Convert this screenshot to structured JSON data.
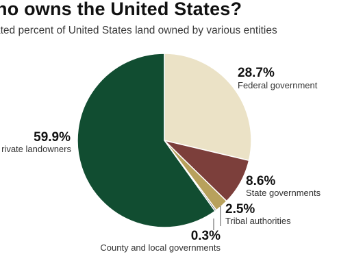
{
  "header": {
    "title": "ho owns the United States?",
    "subtitle": "ated percent of United States land owned by various entities"
  },
  "chart_data": {
    "type": "pie",
    "title": "ho owns the United States?",
    "subtitle": "ated percent of United States land owned by various entities",
    "start_angle_deg": 0,
    "direction": "clockwise",
    "slices": [
      {
        "label": "Federal government",
        "value": 28.7,
        "value_label": "28.7%",
        "color": "#ebe2c6"
      },
      {
        "label": "State governments",
        "value": 8.6,
        "value_label": "8.6%",
        "color": "#7c3f3b"
      },
      {
        "label": "Tribal authorities",
        "value": 2.5,
        "value_label": "2.5%",
        "color": "#b8a15c"
      },
      {
        "label": "County and local governments",
        "value": 0.3,
        "value_label": "0.3%",
        "color": "#5b5b5b"
      },
      {
        "label": "rivate landowners",
        "value": 59.9,
        "value_label": "59.9%",
        "color": "#114d31"
      }
    ]
  }
}
